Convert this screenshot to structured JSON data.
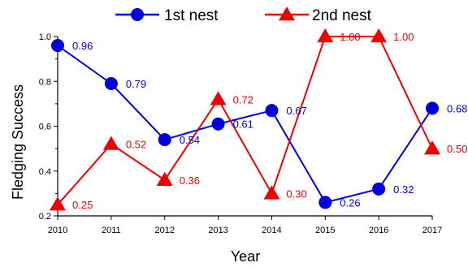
{
  "chart_data": {
    "type": "line",
    "xlabel": "Year",
    "ylabel": "Fledging Success",
    "x": [
      2010,
      2011,
      2012,
      2013,
      2014,
      2015,
      2016,
      2017
    ],
    "ylim": [
      0.2,
      1.0
    ],
    "yticks": [
      "0.2",
      "0.4",
      "0.6",
      "0.8",
      "1.0"
    ],
    "legend_position": "top",
    "grid": false,
    "series": [
      {
        "name": "1st nest",
        "color": "#0000dd",
        "marker": "circle",
        "values": [
          0.96,
          0.79,
          0.54,
          0.61,
          0.67,
          0.26,
          0.32,
          0.68
        ],
        "labels": [
          "0.96",
          "0.79",
          "0.54",
          "0.61",
          "0.67",
          "0.26",
          "0.32",
          "0.68"
        ]
      },
      {
        "name": "2nd nest",
        "color": "#ee0000",
        "marker": "triangle",
        "values": [
          0.25,
          0.52,
          0.36,
          0.72,
          0.3,
          1.0,
          1.0,
          0.5
        ],
        "labels": [
          "0.25",
          "0.52",
          "0.36",
          "0.72",
          "0.30",
          "1.00",
          "1.00",
          "0.50"
        ]
      }
    ]
  }
}
